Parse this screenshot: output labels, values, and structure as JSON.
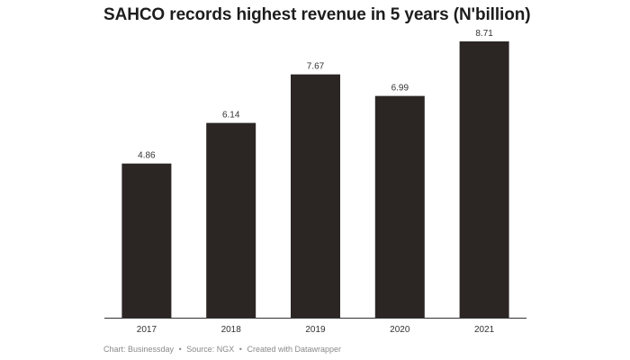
{
  "header": {
    "title": "SAHCO records highest revenue in 5 years (N'billion)"
  },
  "footer": {
    "chart_by": "Chart: Businessday",
    "source": "Source: NGX",
    "created_with": "Created with Datawrapper",
    "separator": "•"
  },
  "colors": {
    "bar": "#2b2624",
    "axis": "#333333",
    "label": "#333333"
  },
  "chart_data": {
    "type": "bar",
    "title": "SAHCO records highest revenue in 5 years (N'billion)",
    "xlabel": "",
    "ylabel": "",
    "categories": [
      "2017",
      "2018",
      "2019",
      "2020",
      "2021"
    ],
    "values": [
      4.86,
      6.14,
      7.67,
      6.99,
      8.71
    ],
    "value_labels": [
      "4.86",
      "6.14",
      "7.67",
      "6.99",
      "8.71"
    ],
    "ylim": [
      0,
      8.71
    ],
    "grid": false,
    "legend": "none"
  }
}
